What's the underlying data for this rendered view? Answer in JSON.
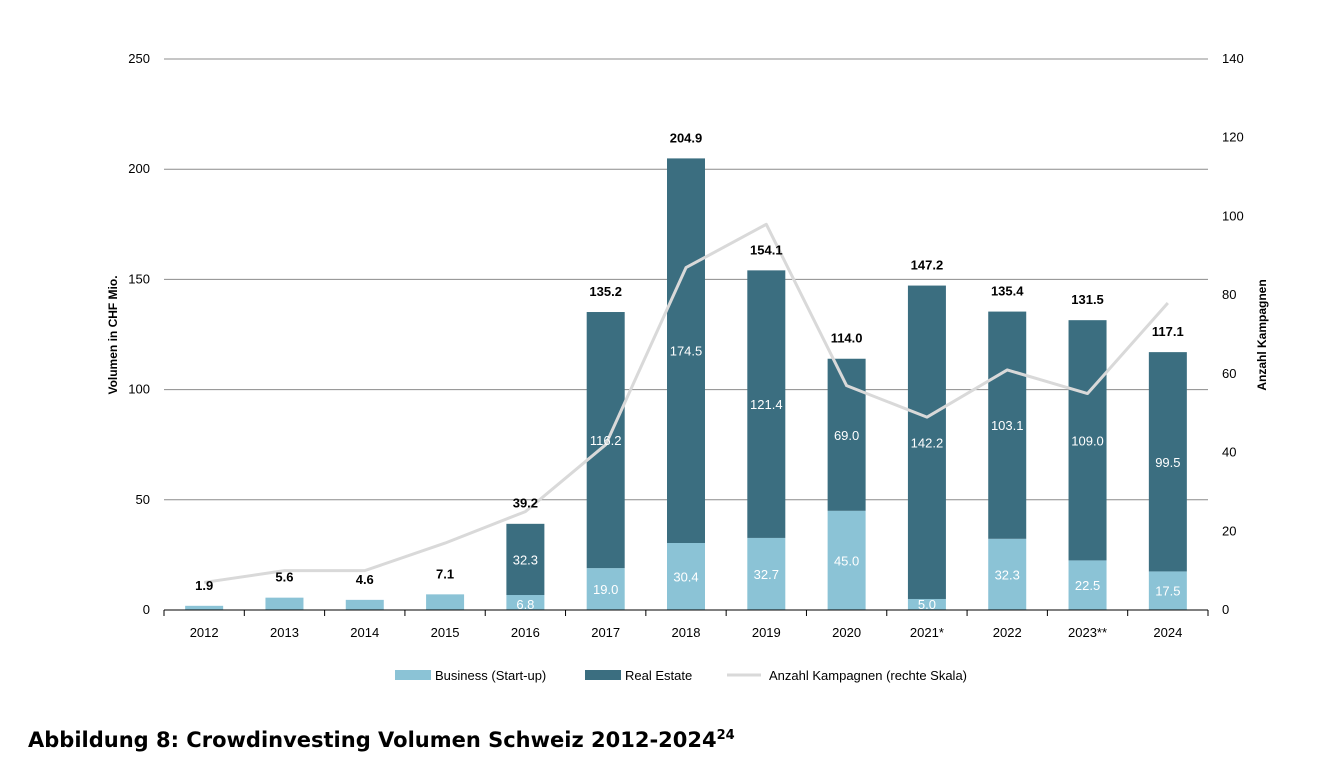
{
  "chart_data": {
    "type": "bar",
    "stacked": true,
    "categories": [
      "2012",
      "2013",
      "2014",
      "2015",
      "2016",
      "2017",
      "2018",
      "2019",
      "2020",
      "2021*",
      "2022",
      "2023**",
      "2024"
    ],
    "series": [
      {
        "name": "Business (Start-up)",
        "color": "#8bc3d6",
        "values": [
          1.9,
          5.6,
          4.6,
          7.1,
          6.8,
          19.0,
          30.4,
          32.7,
          45.0,
          5.0,
          32.3,
          22.5,
          17.5
        ],
        "labels": [
          "",
          "",
          "",
          "",
          "6.8",
          "19.0",
          "30.4",
          "32.7",
          "45.0",
          "5.0",
          "32.3",
          "22.5",
          "17.5"
        ]
      },
      {
        "name": "Real Estate",
        "color": "#3b6e80",
        "values": [
          0,
          0,
          0,
          0,
          32.3,
          116.2,
          174.5,
          121.4,
          69.0,
          142.2,
          103.1,
          109.0,
          99.5
        ],
        "labels": [
          "",
          "",
          "",
          "",
          "32.3",
          "116.2",
          "174.5",
          "121.4",
          "69.0",
          "142.2",
          "103.1",
          "109.0",
          "99.5"
        ]
      }
    ],
    "totals": [
      "1.9",
      "5.6",
      "4.6",
      "7.1",
      "39.2",
      "135.2",
      "204.9",
      "154.1",
      "114.0",
      "147.2",
      "135.4",
      "131.5",
      "117.1"
    ],
    "line": {
      "name": "Anzahl Kampagnen (rechte Skala)",
      "color": "#d9d9d9",
      "values": [
        7,
        10,
        10,
        17,
        25,
        42,
        87,
        98,
        57,
        49,
        61,
        55,
        78
      ]
    },
    "ylabel": "Volumen in CHF Mio.",
    "y2label": "Anzahl Kampagnen",
    "ylim": [
      0,
      250
    ],
    "y2lim": [
      0,
      140
    ],
    "yticks": [
      "0",
      "50",
      "100",
      "150",
      "200",
      "250"
    ],
    "y2ticks": [
      "0",
      "20",
      "40",
      "60",
      "80",
      "100",
      "120",
      "140"
    ],
    "grid": true,
    "legend_position": "bottom"
  },
  "caption": {
    "text": "Abbildung 8: Crowdinvesting Volumen Schweiz 2012-2024",
    "footnote": "24"
  }
}
